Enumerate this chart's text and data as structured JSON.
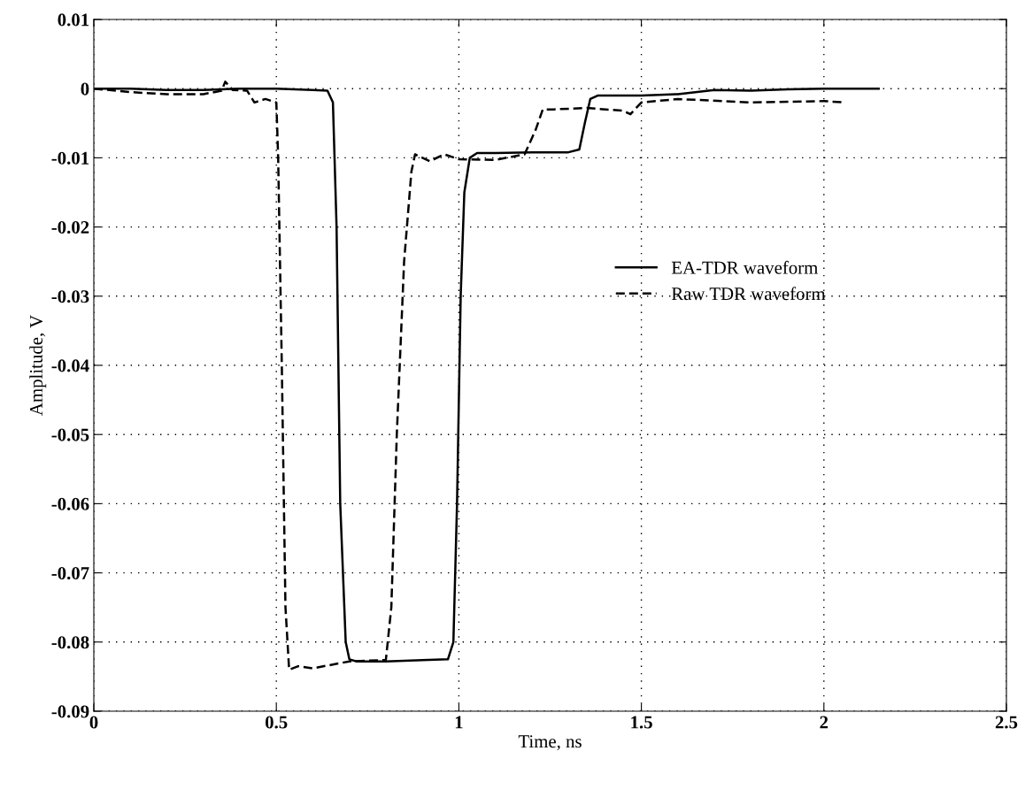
{
  "chart_data": {
    "type": "line",
    "xlabel": "Time, ns",
    "ylabel": "Amplitude, V",
    "xlim": [
      0,
      2.5
    ],
    "ylim": [
      -0.09,
      0.01
    ],
    "xticks": [
      0,
      0.5,
      1,
      1.5,
      2,
      2.5
    ],
    "yticks": [
      0.01,
      0,
      -0.01,
      -0.02,
      -0.03,
      -0.04,
      -0.05,
      -0.06,
      -0.07,
      -0.08,
      -0.09
    ],
    "grid": true,
    "legend": "right",
    "marker": "none",
    "series": [
      {
        "name": "EA-TDR waveform",
        "color": "#000000",
        "line_style": "solid",
        "x": [
          0,
          0.1,
          0.2,
          0.3,
          0.4,
          0.5,
          0.6,
          0.64,
          0.655,
          0.665,
          0.675,
          0.69,
          0.7,
          0.72,
          0.8,
          0.9,
          0.97,
          0.985,
          0.995,
          1.005,
          1.015,
          1.03,
          1.05,
          1.1,
          1.2,
          1.3,
          1.33,
          1.345,
          1.36,
          1.38,
          1.5,
          1.6,
          1.7,
          1.8,
          1.9,
          2.0,
          2.1,
          2.15
        ],
        "values": [
          0,
          0,
          -0.0002,
          -0.0002,
          0,
          0,
          -0.0002,
          -0.0003,
          -0.002,
          -0.02,
          -0.06,
          -0.08,
          -0.0825,
          -0.0828,
          -0.0828,
          -0.0826,
          -0.0825,
          -0.08,
          -0.06,
          -0.03,
          -0.015,
          -0.01,
          -0.0093,
          -0.0093,
          -0.0092,
          -0.0092,
          -0.0088,
          -0.005,
          -0.0015,
          -0.001,
          -0.001,
          -0.0008,
          -0.0002,
          -0.0003,
          -0.0001,
          0,
          0,
          0
        ]
      },
      {
        "name": "Raw TDR waveform",
        "color": "#000000",
        "line_style": "dashed",
        "x": [
          0,
          0.1,
          0.2,
          0.3,
          0.35,
          0.36,
          0.38,
          0.42,
          0.44,
          0.47,
          0.5,
          0.505,
          0.515,
          0.525,
          0.535,
          0.56,
          0.6,
          0.7,
          0.8,
          0.815,
          0.83,
          0.85,
          0.87,
          0.88,
          0.92,
          0.96,
          1.0,
          1.1,
          1.18,
          1.21,
          1.23,
          1.26,
          1.35,
          1.45,
          1.47,
          1.5,
          1.6,
          1.8,
          2.0,
          2.06
        ],
        "values": [
          0,
          -0.0005,
          -0.0008,
          -0.0008,
          -0.0003,
          0.001,
          -0.0002,
          -0.0003,
          -0.002,
          -0.0015,
          -0.002,
          -0.01,
          -0.04,
          -0.075,
          -0.084,
          -0.0835,
          -0.0838,
          -0.0828,
          -0.0826,
          -0.075,
          -0.05,
          -0.025,
          -0.012,
          -0.0095,
          -0.0105,
          -0.0095,
          -0.0102,
          -0.0103,
          -0.0095,
          -0.006,
          -0.003,
          -0.003,
          -0.0028,
          -0.0032,
          -0.0037,
          -0.002,
          -0.0015,
          -0.002,
          -0.0018,
          -0.002
        ]
      }
    ]
  }
}
